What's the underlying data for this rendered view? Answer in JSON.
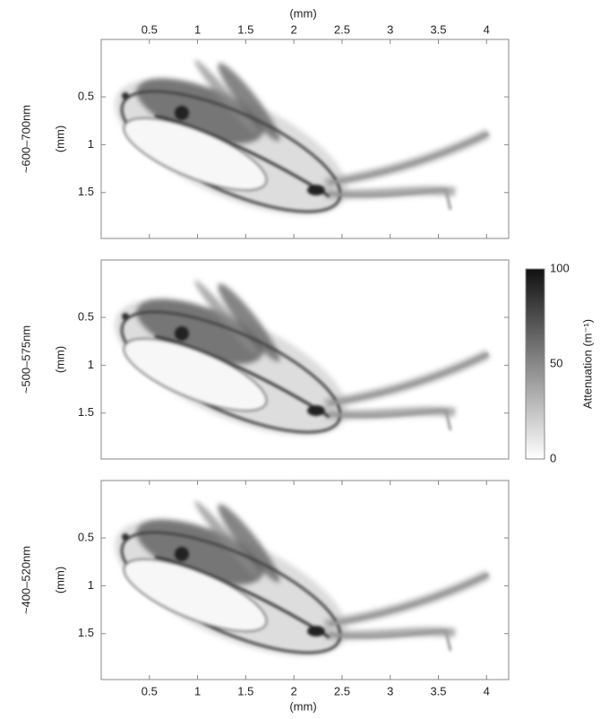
{
  "chart_data": [
    {
      "type": "heatmap",
      "row_label": "~600–700nm",
      "ylabel": "(mm)",
      "xlabel": "(mm)",
      "xaxis": "top",
      "xlim": [
        0,
        4.23
      ],
      "ylim": [
        -0.1,
        1.98
      ],
      "y_inverted": true,
      "xticks": [
        0.5,
        1,
        1.5,
        2,
        2.5,
        3,
        3.5,
        4
      ],
      "yticks": [
        0.5,
        1,
        1.5
      ]
    },
    {
      "type": "heatmap",
      "row_label": "~500–575nm",
      "ylabel": "(mm)",
      "xlim": [
        0,
        4.23
      ],
      "ylim": [
        -0.1,
        1.98
      ],
      "y_inverted": true,
      "yticks": [
        0.5,
        1,
        1.5
      ]
    },
    {
      "type": "heatmap",
      "row_label": "~400–520nm",
      "ylabel": "(mm)",
      "xlabel": "(mm)",
      "xaxis": "bottom",
      "xlim": [
        0,
        4.23
      ],
      "ylim": [
        -0.1,
        1.98
      ],
      "y_inverted": true,
      "xticks": [
        0.5,
        1,
        1.5,
        2,
        2.5,
        3,
        3.5,
        4
      ],
      "yticks": [
        0.5,
        1,
        1.5
      ]
    },
    {
      "type": "colorbar",
      "label": "Attenuation (m⁻¹)",
      "lim": [
        0,
        100
      ],
      "ticks": [
        0,
        50,
        100
      ],
      "colors": [
        "#ffffff",
        "#111111"
      ]
    }
  ]
}
